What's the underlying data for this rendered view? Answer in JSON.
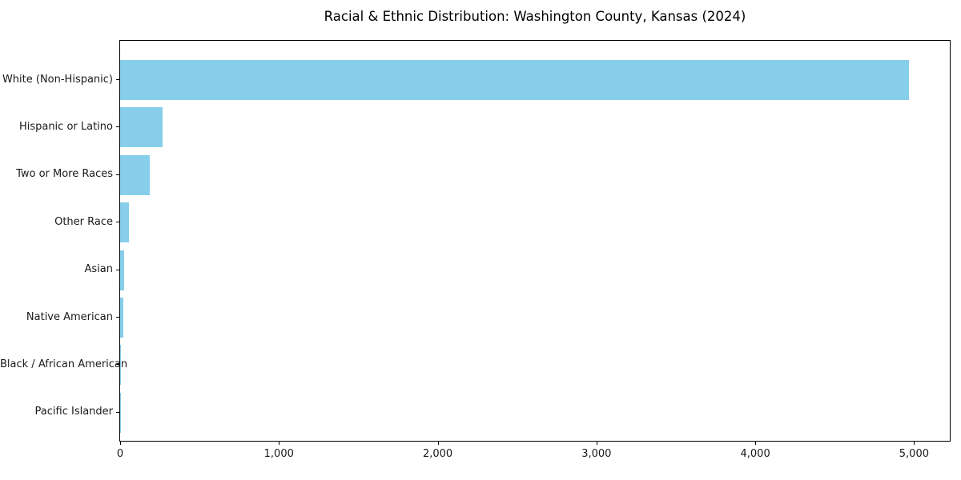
{
  "chart_data": {
    "type": "bar",
    "orientation": "horizontal",
    "title": "Racial & Ethnic Distribution: Washington County, Kansas (2024)",
    "categories": [
      "White (Non-Hispanic)",
      "Hispanic or Latino",
      "Two or More Races",
      "Other Race",
      "Asian",
      "Native American",
      "Black / African American",
      "Pacific Islander"
    ],
    "values": [
      4970,
      268,
      186,
      55,
      25,
      20,
      5,
      1
    ],
    "xlabel": "",
    "ylabel": "",
    "xlim": [
      0,
      5225
    ],
    "x_ticks": [
      0,
      1000,
      2000,
      3000,
      4000,
      5000
    ],
    "x_tick_labels": [
      "0",
      "1,000",
      "2,000",
      "3,000",
      "4,000",
      "5,000"
    ],
    "grid": false,
    "legend": false,
    "bar_color": "#87CEEB",
    "axis_color": "#000000"
  }
}
